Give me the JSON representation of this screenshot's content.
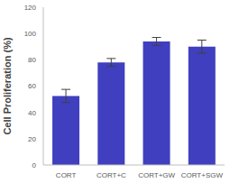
{
  "chart_data": {
    "type": "bar",
    "y_label": "Cell Proliferation (%)",
    "categories": [
      "CORT",
      "CORT+C",
      "CORT+GW",
      "CORT+SGW"
    ],
    "values": [
      52.5,
      78,
      94,
      90
    ],
    "errors": [
      5,
      3,
      3,
      5
    ],
    "color": "#3f3fbf",
    "ylim": [
      0,
      120
    ],
    "yticks": [
      0,
      20,
      40,
      60,
      80,
      100,
      120
    ],
    "grid": false
  }
}
